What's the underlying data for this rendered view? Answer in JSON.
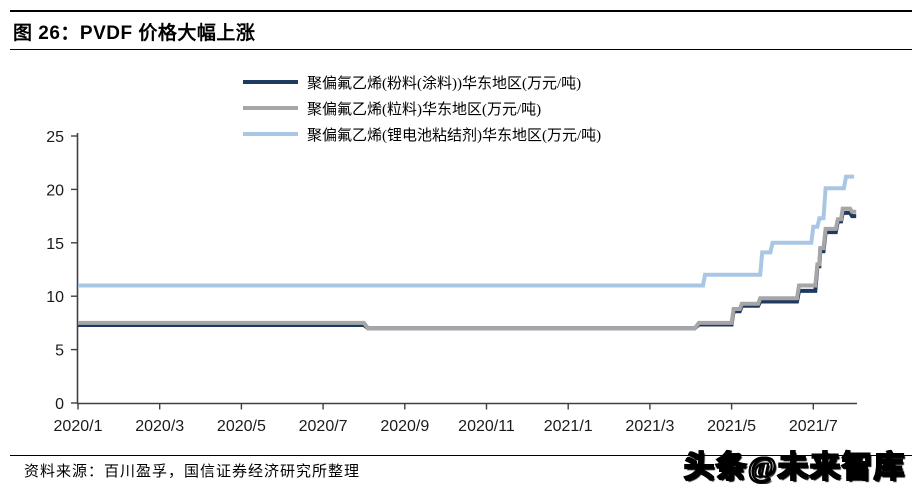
{
  "page": {
    "title": "图 26：PVDF 价格大幅上涨",
    "source_note": "资料来源：百川盈孚，国信证券经济研究所整理",
    "watermark": "头条@未来智库"
  },
  "chart_data": {
    "type": "line",
    "step_style": true,
    "title": "PVDF 价格大幅上涨",
    "xlabel": "",
    "ylabel": "万元/吨",
    "ylim": [
      0,
      25
    ],
    "y_ticks": [
      0,
      5,
      10,
      15,
      20,
      25
    ],
    "x_tick_months": [
      0,
      2,
      4,
      6,
      8,
      10,
      12,
      14,
      16,
      18
    ],
    "x_tick_labels": [
      "2020/1",
      "2020/3",
      "2020/5",
      "2020/7",
      "2020/9",
      "2020/11",
      "2021/1",
      "2021/3",
      "2021/5",
      "2021/7"
    ],
    "x_unit": "months since 2020/1",
    "grid": false,
    "legend_position": "top-center",
    "axis_color": "#404040",
    "tick_label_color": "#1a1a1a",
    "series": [
      {
        "name": "聚偏氟乙烯(粉料(涂料))华东地区(万元/吨)",
        "color": "#1F3A60",
        "points": [
          [
            0,
            7.3
          ],
          [
            7,
            7.3
          ],
          [
            7.1,
            7.0
          ],
          [
            15.1,
            7.0
          ],
          [
            15.2,
            7.35
          ],
          [
            16.0,
            7.35
          ],
          [
            16.05,
            8.6
          ],
          [
            16.2,
            8.6
          ],
          [
            16.25,
            9.1
          ],
          [
            16.65,
            9.1
          ],
          [
            16.7,
            9.5
          ],
          [
            17.6,
            9.5
          ],
          [
            17.65,
            10.5
          ],
          [
            18.05,
            10.5
          ],
          [
            18.1,
            12.8
          ],
          [
            18.15,
            12.8
          ],
          [
            18.17,
            14.2
          ],
          [
            18.25,
            14.2
          ],
          [
            18.3,
            16.0
          ],
          [
            18.55,
            16.0
          ],
          [
            18.6,
            17.0
          ],
          [
            18.68,
            17.0
          ],
          [
            18.72,
            17.8
          ],
          [
            18.9,
            17.8
          ],
          [
            18.95,
            17.5
          ],
          [
            19.05,
            17.5
          ]
        ]
      },
      {
        "name": "聚偏氟乙烯(粒料)华东地区(万元/吨)",
        "color": "#A6A6A6",
        "points": [
          [
            0,
            7.5
          ],
          [
            7,
            7.5
          ],
          [
            7.1,
            7.0
          ],
          [
            15.1,
            7.0
          ],
          [
            15.2,
            7.5
          ],
          [
            16.0,
            7.5
          ],
          [
            16.05,
            8.8
          ],
          [
            16.2,
            8.8
          ],
          [
            16.25,
            9.3
          ],
          [
            16.65,
            9.3
          ],
          [
            16.7,
            9.8
          ],
          [
            17.6,
            9.8
          ],
          [
            17.65,
            11.0
          ],
          [
            18.05,
            11.0
          ],
          [
            18.1,
            13.0
          ],
          [
            18.15,
            13.0
          ],
          [
            18.17,
            14.5
          ],
          [
            18.25,
            14.5
          ],
          [
            18.3,
            16.3
          ],
          [
            18.55,
            16.3
          ],
          [
            18.6,
            17.2
          ],
          [
            18.68,
            17.2
          ],
          [
            18.72,
            18.2
          ],
          [
            18.9,
            18.2
          ],
          [
            18.95,
            17.9
          ],
          [
            19.05,
            17.9
          ]
        ]
      },
      {
        "name": "聚偏氟乙烯(锂电池粘结剂)华东地区(万元/吨)",
        "color": "#A9C7E4",
        "points": [
          [
            0,
            11.0
          ],
          [
            15.3,
            11.0
          ],
          [
            15.35,
            12.0
          ],
          [
            16.7,
            12.0
          ],
          [
            16.75,
            14.1
          ],
          [
            16.95,
            14.1
          ],
          [
            17.0,
            15.0
          ],
          [
            17.95,
            15.0
          ],
          [
            18.0,
            16.5
          ],
          [
            18.1,
            16.5
          ],
          [
            18.15,
            17.3
          ],
          [
            18.25,
            17.3
          ],
          [
            18.3,
            20.1
          ],
          [
            18.75,
            20.1
          ],
          [
            18.8,
            21.2
          ],
          [
            19.0,
            21.2
          ]
        ]
      }
    ]
  }
}
